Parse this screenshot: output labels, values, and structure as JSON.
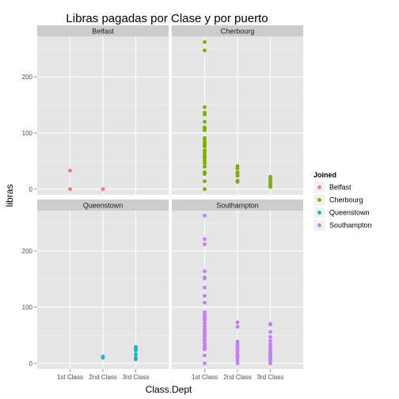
{
  "chart_data": {
    "type": "scatter",
    "title": "Libras pagadas por Clase y por puerto",
    "xlabel": "Class.Dept",
    "ylabel": "libras",
    "categories": [
      "1st Class",
      "2nd Class",
      "3rd Class"
    ],
    "y_ticks": [
      0,
      100,
      200
    ],
    "ylim": [
      -10,
      272
    ],
    "grid": true,
    "legend": {
      "title": "Joined",
      "placement": "right"
    },
    "series": [
      {
        "name": "Belfast",
        "color": "#F8766D",
        "points": [
          {
            "x": "1st Class",
            "y": 33
          },
          {
            "x": "1st Class",
            "y": 0
          },
          {
            "x": "2nd Class",
            "y": 0
          },
          {
            "x": "2nd Class",
            "y": 0
          }
        ]
      },
      {
        "name": "Cherbourg",
        "color": "#7CAE00",
        "points": [
          {
            "x": "1st Class",
            "y": 262
          },
          {
            "x": "1st Class",
            "y": 247
          },
          {
            "x": "1st Class",
            "y": 146
          },
          {
            "x": "1st Class",
            "y": 136
          },
          {
            "x": "1st Class",
            "y": 133
          },
          {
            "x": "1st Class",
            "y": 120
          },
          {
            "x": "1st Class",
            "y": 110
          },
          {
            "x": "1st Class",
            "y": 108
          },
          {
            "x": "1st Class",
            "y": 105
          },
          {
            "x": "1st Class",
            "y": 91
          },
          {
            "x": "1st Class",
            "y": 88
          },
          {
            "x": "1st Class",
            "y": 83
          },
          {
            "x": "1st Class",
            "y": 80
          },
          {
            "x": "1st Class",
            "y": 78
          },
          {
            "x": "1st Class",
            "y": 76
          },
          {
            "x": "1st Class",
            "y": 69
          },
          {
            "x": "1st Class",
            "y": 65
          },
          {
            "x": "1st Class",
            "y": 62
          },
          {
            "x": "1st Class",
            "y": 59
          },
          {
            "x": "1st Class",
            "y": 56
          },
          {
            "x": "1st Class",
            "y": 55
          },
          {
            "x": "1st Class",
            "y": 50
          },
          {
            "x": "1st Class",
            "y": 46
          },
          {
            "x": "1st Class",
            "y": 40
          },
          {
            "x": "1st Class",
            "y": 30
          },
          {
            "x": "1st Class",
            "y": 27
          },
          {
            "x": "1st Class",
            "y": 14
          },
          {
            "x": "1st Class",
            "y": 0
          },
          {
            "x": "2nd Class",
            "y": 41
          },
          {
            "x": "2nd Class",
            "y": 37
          },
          {
            "x": "2nd Class",
            "y": 30
          },
          {
            "x": "2nd Class",
            "y": 27
          },
          {
            "x": "2nd Class",
            "y": 24
          },
          {
            "x": "2nd Class",
            "y": 15
          },
          {
            "x": "2nd Class",
            "y": 13
          },
          {
            "x": "3rd Class",
            "y": 22
          },
          {
            "x": "3rd Class",
            "y": 19
          },
          {
            "x": "3rd Class",
            "y": 15
          },
          {
            "x": "3rd Class",
            "y": 14
          },
          {
            "x": "3rd Class",
            "y": 11
          },
          {
            "x": "3rd Class",
            "y": 8
          },
          {
            "x": "3rd Class",
            "y": 7
          },
          {
            "x": "3rd Class",
            "y": 4
          }
        ]
      },
      {
        "name": "Queenstown",
        "color": "#00BFC4",
        "points": [
          {
            "x": "2nd Class",
            "y": 12
          },
          {
            "x": "2nd Class",
            "y": 10
          },
          {
            "x": "3rd Class",
            "y": 29
          },
          {
            "x": "3rd Class",
            "y": 26
          },
          {
            "x": "3rd Class",
            "y": 23
          },
          {
            "x": "3rd Class",
            "y": 16
          },
          {
            "x": "3rd Class",
            "y": 10
          },
          {
            "x": "3rd Class",
            "y": 7
          }
        ]
      },
      {
        "name": "Southampton",
        "color": "#C77CFF",
        "points": [
          {
            "x": "1st Class",
            "y": 263
          },
          {
            "x": "1st Class",
            "y": 221
          },
          {
            "x": "1st Class",
            "y": 212
          },
          {
            "x": "1st Class",
            "y": 164
          },
          {
            "x": "1st Class",
            "y": 153
          },
          {
            "x": "1st Class",
            "y": 151
          },
          {
            "x": "1st Class",
            "y": 135
          },
          {
            "x": "1st Class",
            "y": 120
          },
          {
            "x": "1st Class",
            "y": 108
          },
          {
            "x": "1st Class",
            "y": 91
          },
          {
            "x": "1st Class",
            "y": 86
          },
          {
            "x": "1st Class",
            "y": 82
          },
          {
            "x": "1st Class",
            "y": 79
          },
          {
            "x": "1st Class",
            "y": 77
          },
          {
            "x": "1st Class",
            "y": 71
          },
          {
            "x": "1st Class",
            "y": 66
          },
          {
            "x": "1st Class",
            "y": 61
          },
          {
            "x": "1st Class",
            "y": 57
          },
          {
            "x": "1st Class",
            "y": 53
          },
          {
            "x": "1st Class",
            "y": 52
          },
          {
            "x": "1st Class",
            "y": 50
          },
          {
            "x": "1st Class",
            "y": 47
          },
          {
            "x": "1st Class",
            "y": 42
          },
          {
            "x": "1st Class",
            "y": 39
          },
          {
            "x": "1st Class",
            "y": 35
          },
          {
            "x": "1st Class",
            "y": 31
          },
          {
            "x": "1st Class",
            "y": 30
          },
          {
            "x": "1st Class",
            "y": 27
          },
          {
            "x": "1st Class",
            "y": 26
          },
          {
            "x": "1st Class",
            "y": 25
          },
          {
            "x": "1st Class",
            "y": 14
          },
          {
            "x": "1st Class",
            "y": 0
          },
          {
            "x": "2nd Class",
            "y": 73
          },
          {
            "x": "2nd Class",
            "y": 65
          },
          {
            "x": "2nd Class",
            "y": 39
          },
          {
            "x": "2nd Class",
            "y": 36
          },
          {
            "x": "2nd Class",
            "y": 33
          },
          {
            "x": "2nd Class",
            "y": 30
          },
          {
            "x": "2nd Class",
            "y": 27
          },
          {
            "x": "2nd Class",
            "y": 26
          },
          {
            "x": "2nd Class",
            "y": 24
          },
          {
            "x": "2nd Class",
            "y": 21
          },
          {
            "x": "2nd Class",
            "y": 19
          },
          {
            "x": "2nd Class",
            "y": 15
          },
          {
            "x": "2nd Class",
            "y": 13
          },
          {
            "x": "2nd Class",
            "y": 11
          },
          {
            "x": "2nd Class",
            "y": 10
          },
          {
            "x": "2nd Class",
            "y": 5
          },
          {
            "x": "2nd Class",
            "y": 0
          },
          {
            "x": "3rd Class",
            "y": 70
          },
          {
            "x": "3rd Class",
            "y": 69
          },
          {
            "x": "3rd Class",
            "y": 56
          },
          {
            "x": "3rd Class",
            "y": 47
          },
          {
            "x": "3rd Class",
            "y": 40
          },
          {
            "x": "3rd Class",
            "y": 34
          },
          {
            "x": "3rd Class",
            "y": 31
          },
          {
            "x": "3rd Class",
            "y": 29
          },
          {
            "x": "3rd Class",
            "y": 27
          },
          {
            "x": "3rd Class",
            "y": 25
          },
          {
            "x": "3rd Class",
            "y": 21
          },
          {
            "x": "3rd Class",
            "y": 18
          },
          {
            "x": "3rd Class",
            "y": 16
          },
          {
            "x": "3rd Class",
            "y": 14
          },
          {
            "x": "3rd Class",
            "y": 11
          },
          {
            "x": "3rd Class",
            "y": 9
          },
          {
            "x": "3rd Class",
            "y": 8
          },
          {
            "x": "3rd Class",
            "y": 7
          },
          {
            "x": "3rd Class",
            "y": 5
          },
          {
            "x": "3rd Class",
            "y": 0
          }
        ]
      }
    ],
    "facets": [
      {
        "label": "Belfast",
        "series": "Belfast"
      },
      {
        "label": "Cherbourg",
        "series": "Cherbourg"
      },
      {
        "label": "Queenstown",
        "series": "Queenstown"
      },
      {
        "label": "Southampton",
        "series": "Southampton"
      }
    ]
  }
}
